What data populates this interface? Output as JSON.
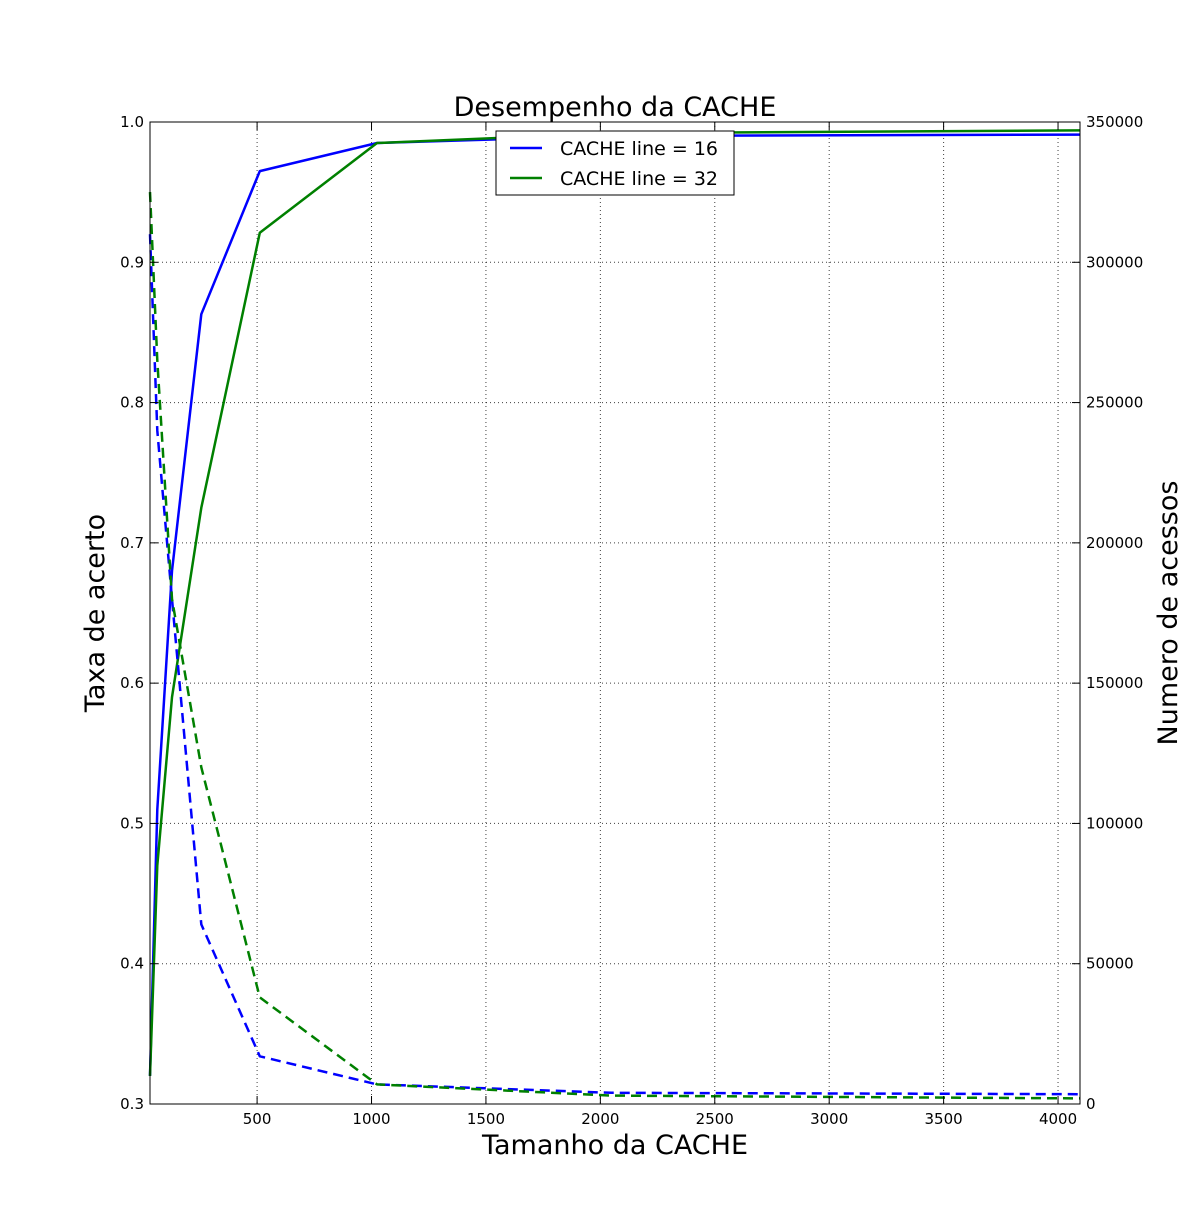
{
  "chart_data": {
    "type": "line",
    "title": "Desempenho da CACHE",
    "xlabel": "Tamanho da CACHE",
    "ylabel": "Taxa de acerto",
    "ylabel_right": "Numero de acessos",
    "xlim": [
      32,
      4096
    ],
    "ylim": [
      0.3,
      1.0
    ],
    "ylim_right": [
      0,
      350000
    ],
    "xticks": [
      500,
      1000,
      1500,
      2000,
      2500,
      3000,
      3500,
      4000
    ],
    "yticks": [
      0.3,
      0.4,
      0.5,
      0.6,
      0.7,
      0.8,
      0.9,
      1.0
    ],
    "yticks_right": [
      0,
      50000,
      100000,
      150000,
      200000,
      250000,
      300000,
      350000
    ],
    "xtick_labels": [
      "500",
      "1000",
      "1500",
      "2000",
      "2500",
      "3000",
      "3500",
      "4000"
    ],
    "ytick_labels": [
      "0.3",
      "0.4",
      "0.5",
      "0.6",
      "0.7",
      "0.8",
      "0.9",
      "1.0"
    ],
    "ytick_labels_right": [
      "0",
      "50000",
      "100000",
      "150000",
      "200000",
      "250000",
      "300000",
      "350000"
    ],
    "grid": true,
    "legend_position": "top-center",
    "series": [
      {
        "name": "CACHE line = 16",
        "axis": "left",
        "style": "solid",
        "color": "#0000ff",
        "x": [
          32,
          64,
          128,
          256,
          512,
          1024,
          2048,
          4096
        ],
        "y": [
          0.32,
          0.51,
          0.68,
          0.863,
          0.965,
          0.985,
          0.99,
          0.991
        ]
      },
      {
        "name": "CACHE line = 32",
        "axis": "left",
        "style": "solid",
        "color": "#008000",
        "x": [
          32,
          64,
          128,
          256,
          512,
          1024,
          2048,
          4096
        ],
        "y": [
          0.32,
          0.47,
          0.59,
          0.725,
          0.921,
          0.985,
          0.992,
          0.994
        ]
      },
      {
        "axis": "right",
        "style": "dashed",
        "color": "#0000ff",
        "x": [
          32,
          64,
          128,
          256,
          512,
          1024,
          2048,
          4096
        ],
        "y": [
          310000,
          240000,
          180000,
          64000,
          17000,
          7000,
          4000,
          3500
        ]
      },
      {
        "axis": "right",
        "style": "dashed",
        "color": "#008000",
        "x": [
          32,
          64,
          128,
          256,
          512,
          1024,
          2048,
          4096
        ],
        "y": [
          325000,
          265000,
          180000,
          120000,
          38000,
          7000,
          3000,
          2000
        ]
      }
    ]
  }
}
